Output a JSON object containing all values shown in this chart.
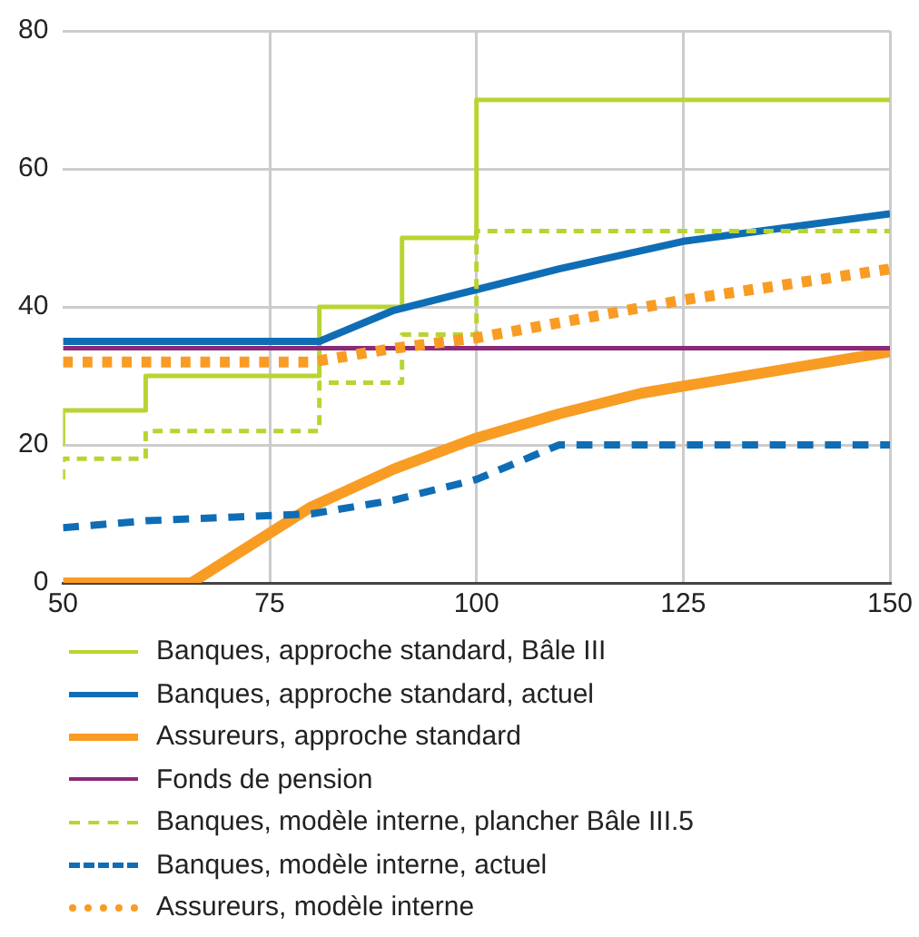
{
  "chart_data": {
    "type": "line",
    "xlim": [
      50,
      150
    ],
    "xticks": [
      50,
      75,
      100,
      125,
      150
    ],
    "ylim": [
      0,
      80
    ],
    "yticks": [
      0,
      20,
      40,
      60,
      80
    ],
    "grid": true,
    "legend": "bottom",
    "marker": "none",
    "series": [
      {
        "name": "Banques, approche standard, Bâle III",
        "type": "step",
        "color": "#b9d432",
        "line_style": "solid",
        "x": [
          50,
          50,
          60,
          60,
          81,
          81,
          91,
          91,
          100,
          100,
          150
        ],
        "values": [
          20,
          25,
          25,
          30,
          30,
          40,
          40,
          50,
          50,
          70,
          70
        ]
      },
      {
        "name": "Banques, approche standard, actuel",
        "color": "#0f6db5",
        "line_style": "solid",
        "x": [
          50,
          81,
          90,
          100,
          110,
          125,
          150
        ],
        "values": [
          35,
          35,
          39.5,
          42.5,
          45.5,
          49.5,
          53.5
        ]
      },
      {
        "name": "Assureurs, approche standard",
        "color": "#f89c24",
        "line_style": "solid",
        "x": [
          50,
          65.5,
          80,
          90,
          100,
          110,
          120,
          150
        ],
        "values": [
          0,
          0,
          11,
          16.5,
          21,
          24.5,
          27.5,
          33.5
        ]
      },
      {
        "name": "Fonds de pension",
        "color": "#8a2a78",
        "line_style": "solid",
        "x": [
          50,
          150
        ],
        "values": [
          34,
          34
        ]
      },
      {
        "name": "Banques, modèle interne, plancher Bâle III.5",
        "type": "step",
        "color": "#b9d432",
        "line_style": "dashed",
        "x": [
          50,
          50,
          60,
          60,
          81,
          81,
          91,
          91,
          100,
          100,
          150
        ],
        "values": [
          15,
          18,
          18,
          22,
          22,
          29,
          29,
          36,
          36,
          51,
          51
        ]
      },
      {
        "name": "Banques, modèle interne, actuel",
        "color": "#0f6db5",
        "line_style": "dashed",
        "x": [
          50,
          60,
          70,
          80,
          90,
          100,
          110,
          150
        ],
        "values": [
          8,
          9,
          9.5,
          10,
          12,
          15,
          20,
          20
        ]
      },
      {
        "name": "Assureurs, modèle interne",
        "color": "#f89c24",
        "line_style": "dotted",
        "x": [
          50,
          80,
          90,
          100,
          125,
          150
        ],
        "values": [
          32,
          32,
          34,
          35.5,
          41,
          45.5
        ]
      }
    ]
  }
}
